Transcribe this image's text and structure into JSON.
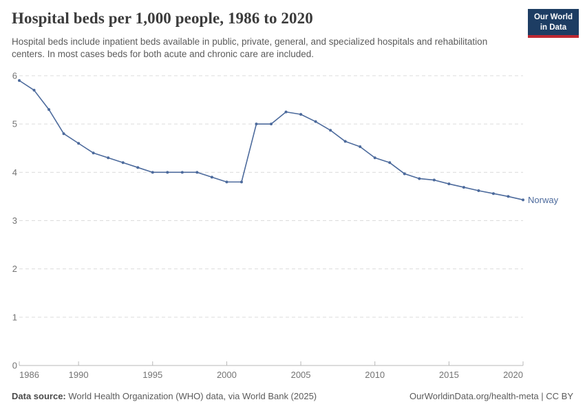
{
  "header": {
    "title": "Hospital beds per 1,000 people, 1986 to 2020",
    "subtitle": "Hospital beds include inpatient beds available in public, private, general, and specialized hospitals and rehabilitation centers. In most cases beds for both acute and chronic care are included.",
    "logo": {
      "line1": "Our World",
      "line2": "in Data"
    }
  },
  "footer": {
    "source_label": "Data source:",
    "source_text": " World Health Organization (WHO) data, via World Bank (2025)",
    "credit": "OurWorldinData.org/health-meta | CC BY"
  },
  "colors": {
    "line": "#4C6A9C",
    "grid": "#dcdcdc",
    "axis": "#b8b8b8",
    "tick_label": "#737373",
    "logo_bg": "#1d3d63",
    "logo_red": "#be2832",
    "title_text": "#3b3b3b",
    "subtitle_text": "#5b5b5b"
  },
  "chart_data": {
    "type": "line",
    "title": "Hospital beds per 1,000 people, 1986 to 2020",
    "xlabel": "",
    "ylabel": "",
    "xlim": [
      1986,
      2020
    ],
    "ylim": [
      0,
      6
    ],
    "x_ticks": [
      1986,
      1990,
      1995,
      2000,
      2005,
      2010,
      2015,
      2020
    ],
    "y_ticks": [
      0,
      1,
      2,
      3,
      4,
      5,
      6
    ],
    "grid": "horizontal-dashed",
    "legend": "label-at-line-end",
    "series": [
      {
        "name": "Norway",
        "color": "#4C6A9C",
        "x": [
          1986,
          1987,
          1988,
          1989,
          1990,
          1991,
          1992,
          1993,
          1994,
          1995,
          1996,
          1997,
          1998,
          1999,
          2000,
          2001,
          2002,
          2003,
          2004,
          2005,
          2006,
          2007,
          2008,
          2009,
          2010,
          2011,
          2012,
          2013,
          2014,
          2015,
          2016,
          2017,
          2018,
          2019,
          2020
        ],
        "values": [
          5.9,
          5.7,
          5.3,
          4.8,
          4.6,
          4.4,
          4.3,
          4.2,
          4.1,
          4.0,
          4.0,
          4.0,
          4.0,
          3.9,
          3.8,
          3.8,
          5.0,
          5.0,
          5.25,
          5.2,
          5.05,
          4.87,
          4.64,
          4.53,
          4.3,
          4.2,
          3.97,
          3.87,
          3.84,
          3.76,
          3.69,
          3.62,
          3.56,
          3.5,
          3.43
        ]
      }
    ]
  }
}
